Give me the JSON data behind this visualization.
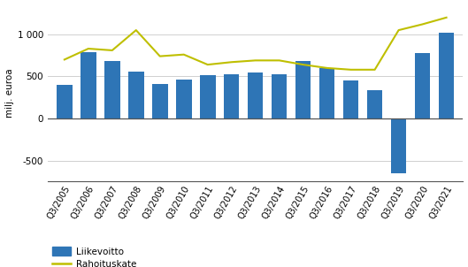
{
  "categories": [
    "Q3/2005",
    "Q3/2006",
    "Q3/2007",
    "Q3/2008",
    "Q3/2009",
    "Q3/2010",
    "Q3/2011",
    "Q3/2012",
    "Q3/2013",
    "Q3/2014",
    "Q3/2015",
    "Q3/2016",
    "Q3/2017",
    "Q3/2018",
    "Q3/2019",
    "Q3/2020",
    "Q3/2021"
  ],
  "liikevoitto": [
    400,
    790,
    680,
    560,
    415,
    460,
    520,
    530,
    550,
    525,
    680,
    600,
    450,
    340,
    -650,
    775,
    1020
  ],
  "rahoituskate": [
    700,
    830,
    810,
    1050,
    740,
    760,
    640,
    670,
    690,
    690,
    640,
    600,
    580,
    580,
    1050,
    1120,
    1200
  ],
  "bar_color": "#2E75B6",
  "line_color": "#BFBF00",
  "ylabel": "milj. euroa",
  "ylim": [
    -750,
    1350
  ],
  "yticks": [
    -500,
    0,
    500,
    1000
  ],
  "ytick_labels": [
    "-500",
    "0",
    "500",
    "1 000"
  ],
  "legend_liikevoitto": "Liikevoitto",
  "legend_rahoituskate": "Rahoituskate",
  "background_color": "#ffffff",
  "grid_color": "#d0d0d0"
}
